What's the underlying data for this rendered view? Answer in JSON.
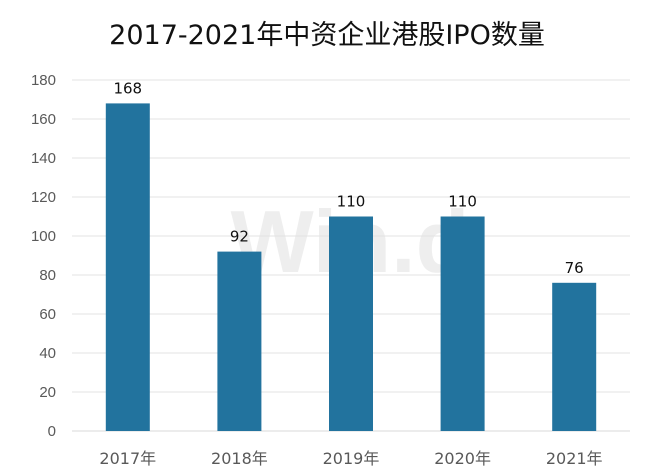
{
  "chart_data": {
    "type": "bar",
    "title": "2017-2021年中资企业港股IPO数量",
    "categories": [
      "2017年",
      "2018年",
      "2019年",
      "2020年",
      "2021年"
    ],
    "values": [
      168,
      92,
      110,
      110,
      76
    ],
    "ylim": [
      0,
      180
    ],
    "yticks": [
      0,
      20,
      40,
      60,
      80,
      100,
      120,
      140,
      160,
      180
    ],
    "xlabel": "",
    "ylabel": "",
    "grid": true,
    "legend": "none",
    "bar_color": "#22739e",
    "watermark": "Win.d"
  }
}
